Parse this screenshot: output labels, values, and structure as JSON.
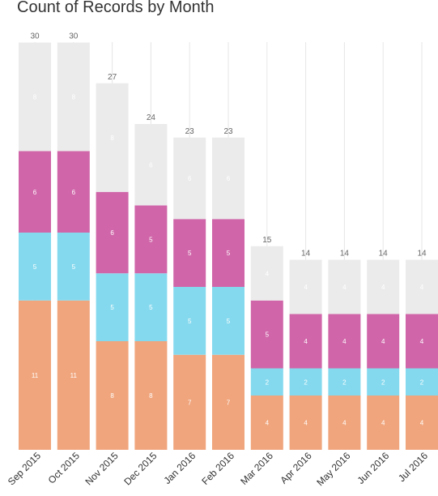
{
  "chart_data": {
    "type": "bar",
    "stacked": true,
    "title": "Count of Records by Month",
    "xlabel": "",
    "ylabel": "",
    "ylim": [
      0,
      30
    ],
    "grid": true,
    "categories": [
      "Sep 2015",
      "Oct 2015",
      "Nov 2015",
      "Dec 2015",
      "Jan 2016",
      "Feb 2016",
      "Mar 2016",
      "Apr 2016",
      "May 2016",
      "Jun 2016",
      "Jul 2016"
    ],
    "series": [
      {
        "color": "#f0a57c",
        "values": [
          11,
          11,
          8,
          8,
          7,
          7,
          4,
          4,
          4,
          4,
          4
        ]
      },
      {
        "color": "#85d9ee",
        "values": [
          5,
          5,
          5,
          5,
          5,
          5,
          2,
          2,
          2,
          2,
          2
        ]
      },
      {
        "color": "#d066a9",
        "values": [
          6,
          6,
          6,
          5,
          5,
          5,
          5,
          4,
          4,
          4,
          4
        ]
      },
      {
        "color": "#ebebeb",
        "values": [
          8,
          8,
          8,
          6,
          6,
          6,
          4,
          4,
          4,
          4,
          4
        ]
      }
    ],
    "totals": [
      30,
      30,
      27,
      24,
      23,
      23,
      15,
      14,
      14,
      14,
      14
    ]
  }
}
